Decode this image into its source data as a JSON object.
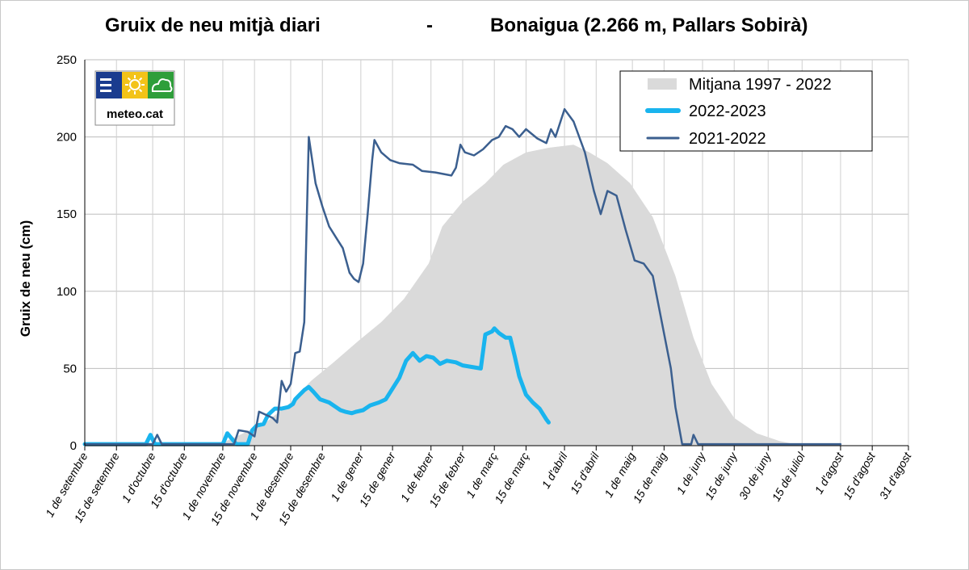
{
  "chart_data": {
    "type": "area",
    "title_left": "Gruix de neu mitjà diari",
    "title_sep": "-",
    "title_right": "Bonaigua (2.266 m, Pallars Sobirà)",
    "ylabel": "Gruix de neu (cm)",
    "ylim": [
      0,
      250
    ],
    "yticks": [
      0,
      50,
      100,
      150,
      200,
      250
    ],
    "grid": true,
    "legend_position": "top-right",
    "x_date_range": [
      "09-01",
      "08-31"
    ],
    "x_ticks": [
      {
        "date": "09-01",
        "label": "1 de setembre"
      },
      {
        "date": "09-15",
        "label": "15 de setembre"
      },
      {
        "date": "10-01",
        "label": "1 d'octubre"
      },
      {
        "date": "10-15",
        "label": "15 d'octubre"
      },
      {
        "date": "11-01",
        "label": "1 de novembre"
      },
      {
        "date": "11-15",
        "label": "15 de novembre"
      },
      {
        "date": "12-01",
        "label": "1 de desembre"
      },
      {
        "date": "12-15",
        "label": "15 de desembre"
      },
      {
        "date": "01-01",
        "label": "1 de gener"
      },
      {
        "date": "01-15",
        "label": "15 de gener"
      },
      {
        "date": "02-01",
        "label": "1 de febrer"
      },
      {
        "date": "02-15",
        "label": "15 de febrer"
      },
      {
        "date": "03-01",
        "label": "1 de març"
      },
      {
        "date": "03-15",
        "label": "15 de març"
      },
      {
        "date": "04-01",
        "label": "1 d'abril"
      },
      {
        "date": "04-15",
        "label": "15 d'abril"
      },
      {
        "date": "05-01",
        "label": "1 de maig"
      },
      {
        "date": "05-15",
        "label": "15 de maig"
      },
      {
        "date": "06-01",
        "label": "1 de juny"
      },
      {
        "date": "06-15",
        "label": "15 de juny"
      },
      {
        "date": "06-30",
        "label": "30 de juny"
      },
      {
        "date": "07-15",
        "label": "15 de juliol"
      },
      {
        "date": "08-01",
        "label": "1 d'agost"
      },
      {
        "date": "08-15",
        "label": "15 d'agost"
      },
      {
        "date": "08-31",
        "label": "31 d'agost"
      }
    ],
    "series": [
      {
        "name": "Mitjana  1997 - 2022",
        "kind": "area",
        "color": "#dadada",
        "points": [
          [
            "09-01",
            0
          ],
          [
            "10-20",
            0
          ],
          [
            "11-01",
            2
          ],
          [
            "11-10",
            8
          ],
          [
            "11-20",
            15
          ],
          [
            "12-01",
            28
          ],
          [
            "12-10",
            42
          ],
          [
            "12-20",
            54
          ],
          [
            "12-31",
            68
          ],
          [
            "01-10",
            80
          ],
          [
            "01-20",
            95
          ],
          [
            "01-31",
            118
          ],
          [
            "02-06",
            142
          ],
          [
            "02-15",
            158
          ],
          [
            "02-25",
            170
          ],
          [
            "03-05",
            182
          ],
          [
            "03-15",
            190
          ],
          [
            "03-25",
            193
          ],
          [
            "04-05",
            195
          ],
          [
            "04-12",
            190
          ],
          [
            "04-20",
            183
          ],
          [
            "04-30",
            170
          ],
          [
            "05-10",
            148
          ],
          [
            "05-20",
            110
          ],
          [
            "05-28",
            70
          ],
          [
            "06-05",
            40
          ],
          [
            "06-15",
            18
          ],
          [
            "06-25",
            8
          ],
          [
            "07-05",
            3
          ],
          [
            "07-15",
            0
          ],
          [
            "08-31",
            0
          ]
        ]
      },
      {
        "name": "2022-2023",
        "kind": "line",
        "color": "#19b4ee",
        "points": [
          [
            "09-01",
            1
          ],
          [
            "09-28",
            1
          ],
          [
            "09-30",
            7
          ],
          [
            "10-02",
            1
          ],
          [
            "10-15",
            1
          ],
          [
            "11-01",
            1
          ],
          [
            "11-03",
            8
          ],
          [
            "11-07",
            1
          ],
          [
            "11-12",
            1
          ],
          [
            "11-14",
            10
          ],
          [
            "11-16",
            13
          ],
          [
            "11-19",
            14
          ],
          [
            "11-21",
            20
          ],
          [
            "11-24",
            24
          ],
          [
            "11-27",
            24
          ],
          [
            "11-30",
            25
          ],
          [
            "12-02",
            27
          ],
          [
            "12-03",
            30
          ],
          [
            "12-05",
            33
          ],
          [
            "12-07",
            36
          ],
          [
            "12-09",
            38
          ],
          [
            "12-11",
            35
          ],
          [
            "12-14",
            30
          ],
          [
            "12-18",
            28
          ],
          [
            "12-21",
            25
          ],
          [
            "12-23",
            23
          ],
          [
            "12-25",
            22
          ],
          [
            "12-28",
            21
          ],
          [
            "12-30",
            22
          ],
          [
            "01-02",
            23
          ],
          [
            "01-05",
            26
          ],
          [
            "01-09",
            28
          ],
          [
            "01-12",
            30
          ],
          [
            "01-15",
            37
          ],
          [
            "01-18",
            44
          ],
          [
            "01-21",
            55
          ],
          [
            "01-24",
            60
          ],
          [
            "01-27",
            55
          ],
          [
            "01-30",
            58
          ],
          [
            "02-02",
            57
          ],
          [
            "02-05",
            53
          ],
          [
            "02-08",
            55
          ],
          [
            "02-12",
            54
          ],
          [
            "02-15",
            52
          ],
          [
            "02-19",
            51
          ],
          [
            "02-23",
            50
          ],
          [
            "02-25",
            72
          ],
          [
            "02-28",
            74
          ],
          [
            "03-01",
            76
          ],
          [
            "03-03",
            73
          ],
          [
            "03-06",
            70
          ],
          [
            "03-08",
            70
          ],
          [
            "03-10",
            58
          ],
          [
            "03-12",
            45
          ],
          [
            "03-15",
            33
          ],
          [
            "03-18",
            28
          ],
          [
            "03-21",
            24
          ],
          [
            "03-24",
            17
          ],
          [
            "03-25",
            15
          ]
        ]
      },
      {
        "name": "2021-2022",
        "kind": "line",
        "color": "#3b5f8f",
        "points": [
          [
            "09-01",
            1
          ],
          [
            "10-01",
            1
          ],
          [
            "10-03",
            7
          ],
          [
            "10-05",
            1
          ],
          [
            "11-06",
            1
          ],
          [
            "11-08",
            10
          ],
          [
            "11-12",
            9
          ],
          [
            "11-15",
            6
          ],
          [
            "11-17",
            22
          ],
          [
            "11-20",
            20
          ],
          [
            "11-23",
            18
          ],
          [
            "11-25",
            15
          ],
          [
            "11-27",
            42
          ],
          [
            "11-29",
            35
          ],
          [
            "12-01",
            40
          ],
          [
            "12-03",
            60
          ],
          [
            "12-05",
            61
          ],
          [
            "12-07",
            80
          ],
          [
            "12-09",
            200
          ],
          [
            "12-12",
            170
          ],
          [
            "12-15",
            155
          ],
          [
            "12-18",
            142
          ],
          [
            "12-21",
            135
          ],
          [
            "12-24",
            128
          ],
          [
            "12-27",
            112
          ],
          [
            "12-29",
            108
          ],
          [
            "12-31",
            106
          ],
          [
            "01-02",
            118
          ],
          [
            "01-04",
            150
          ],
          [
            "01-06",
            185
          ],
          [
            "01-07",
            198
          ],
          [
            "01-10",
            190
          ],
          [
            "01-14",
            185
          ],
          [
            "01-18",
            183
          ],
          [
            "01-24",
            182
          ],
          [
            "01-28",
            178
          ],
          [
            "02-03",
            177
          ],
          [
            "02-10",
            175
          ],
          [
            "02-12",
            180
          ],
          [
            "02-14",
            195
          ],
          [
            "02-16",
            190
          ],
          [
            "02-20",
            188
          ],
          [
            "02-24",
            192
          ],
          [
            "02-28",
            198
          ],
          [
            "03-03",
            200
          ],
          [
            "03-06",
            207
          ],
          [
            "03-09",
            205
          ],
          [
            "03-12",
            200
          ],
          [
            "03-15",
            205
          ],
          [
            "03-20",
            199
          ],
          [
            "03-24",
            196
          ],
          [
            "03-26",
            205
          ],
          [
            "03-28",
            200
          ],
          [
            "04-01",
            218
          ],
          [
            "04-05",
            210
          ],
          [
            "04-10",
            190
          ],
          [
            "04-14",
            165
          ],
          [
            "04-17",
            150
          ],
          [
            "04-20",
            165
          ],
          [
            "04-24",
            162
          ],
          [
            "04-28",
            140
          ],
          [
            "05-02",
            120
          ],
          [
            "05-06",
            118
          ],
          [
            "05-10",
            110
          ],
          [
            "05-14",
            80
          ],
          [
            "05-18",
            50
          ],
          [
            "05-20",
            25
          ],
          [
            "05-23",
            1
          ],
          [
            "05-27",
            1
          ],
          [
            "05-28",
            7
          ],
          [
            "05-30",
            1
          ],
          [
            "08-01",
            1
          ]
        ]
      }
    ],
    "logo": {
      "text": "meteo.cat",
      "colors": [
        "#1a3c8f",
        "#f3c318",
        "#2e9e3a"
      ]
    }
  }
}
